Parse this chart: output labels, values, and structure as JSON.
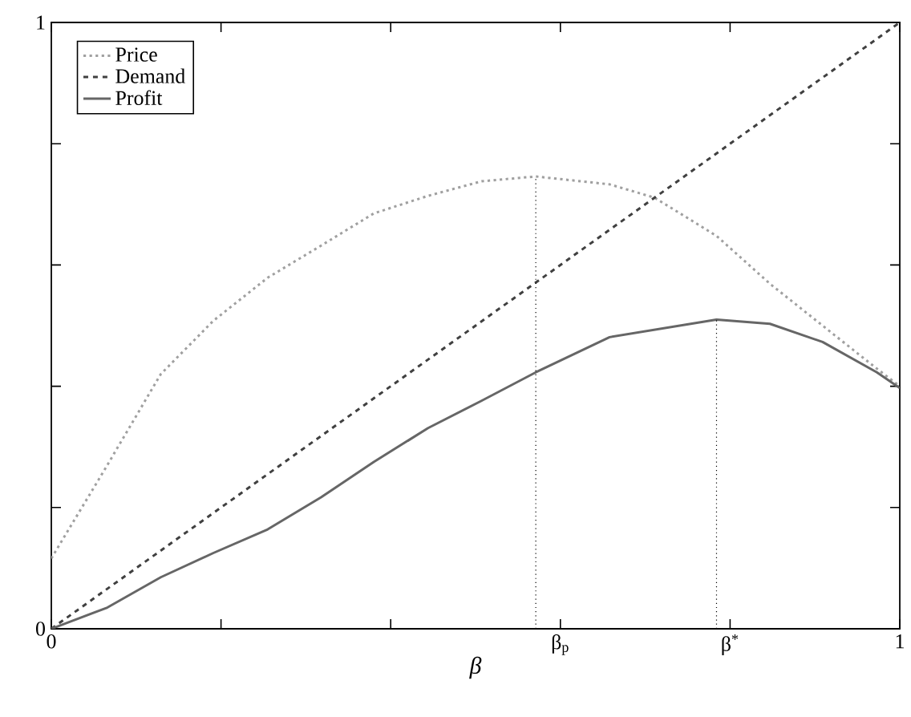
{
  "chart_data": {
    "type": "line",
    "xlabel": "*β*",
    "xlim": [
      0,
      1
    ],
    "ylim": [
      0,
      1
    ],
    "xticks": [
      0,
      {
        "value": 0.2,
        "label": null
      },
      {
        "value": 0.4,
        "label": null
      },
      {
        "value": 0.6,
        "label": "β$_{p}$"
      },
      {
        "value": 0.8,
        "label": "β$^{*}$"
      },
      1
    ],
    "yticks": [
      0,
      {
        "value": 0.2,
        "label": null
      },
      {
        "value": 0.4,
        "label": null
      },
      {
        "value": 0.6,
        "label": null
      },
      {
        "value": 0.8,
        "label": null
      },
      1
    ],
    "grid": false,
    "legend": "top left",
    "marker": "none",
    "series": [
      {
        "name": "Price",
        "color": "#a0a0a0",
        "line_style": "dotted",
        "x": [
          0,
          0.066,
          0.129,
          0.191,
          0.255,
          0.318,
          0.38,
          0.444,
          0.507,
          0.571,
          0.658,
          0.711,
          0.784,
          0.847,
          0.909,
          0.973,
          1
        ],
        "values": [
          0.116,
          0.27,
          0.42,
          0.508,
          0.579,
          0.632,
          0.685,
          0.714,
          0.738,
          0.746,
          0.733,
          0.711,
          0.648,
          0.569,
          0.5,
          0.429,
          0.4
        ]
      },
      {
        "name": "Demand",
        "color": "#404040",
        "line_style": "dashed",
        "x": [
          0,
          1
        ],
        "values": [
          0,
          1
        ]
      },
      {
        "name": "Profit",
        "color": "#666666",
        "line_style": "solid",
        "x": [
          0,
          0.066,
          0.129,
          0.191,
          0.255,
          0.318,
          0.38,
          0.444,
          0.507,
          0.571,
          0.658,
          0.784,
          0.847,
          0.909,
          0.973,
          1
        ],
        "values": [
          0,
          0.035,
          0.085,
          0.125,
          0.164,
          0.217,
          0.275,
          0.331,
          0.376,
          0.423,
          0.481,
          0.51,
          0.503,
          0.473,
          0.423,
          0.397
        ]
      },
      {
        "color": "#000000",
        "line_style": "dotted",
        "x": [
          0.571,
          0.571
        ],
        "values": [
          0,
          0.746
        ]
      },
      {
        "color": "#000000",
        "line_style": "dotted",
        "x": [
          0.784,
          0.784
        ],
        "values": [
          0,
          0.51
        ]
      }
    ]
  }
}
